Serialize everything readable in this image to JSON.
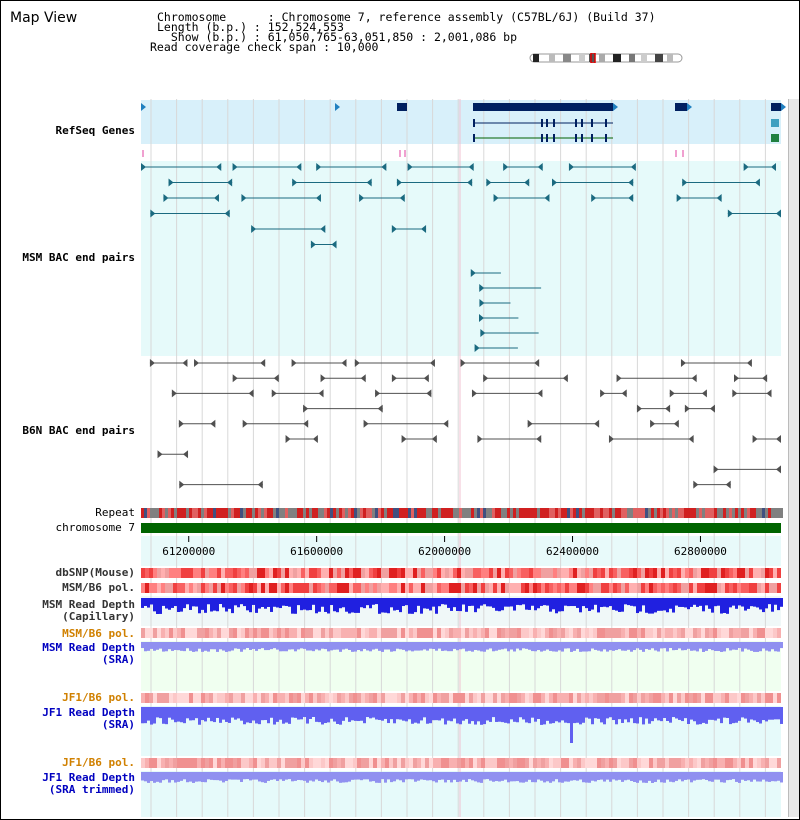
{
  "app": {
    "title": "Map View"
  },
  "header": {
    "lines": [
      "Chromosome      : Chromosome 7, reference assembly (C57BL/6J) (Build 37)",
      "Length (b.p.) : 152,524,553",
      "  Show (b.p.) : 61,050,765-63,051,850 : 2,001,086 bp",
      "Read coverage check span : 10,000"
    ]
  },
  "view": {
    "start": 61050765,
    "end": 63051850
  },
  "axis": {
    "ticks": [
      "61200000",
      "61600000",
      "62000000",
      "62400000",
      "62800000"
    ],
    "tick_values": [
      61200000,
      61600000,
      62000000,
      62400000,
      62800000
    ]
  },
  "tracks": {
    "refseq": {
      "label": "RefSeq Genes",
      "color": "#0000c0"
    },
    "msm_bac": {
      "label": "MSM BAC end pairs",
      "color": "#005f7f"
    },
    "b6n_bac": {
      "label": "B6N BAC end pairs",
      "color": "#404040"
    },
    "repeat": {
      "label": "Repeat"
    },
    "chromosome": {
      "label": "chromosome 7"
    },
    "dbsnp": {
      "label": "dbSNP(Mouse)"
    },
    "msm_b6_pol": {
      "label": "MSM/B6 pol."
    },
    "msm_depth_cap": {
      "label": "MSM Read Depth\n(Capillary)"
    },
    "msm_b6_pol_sra": {
      "label": "MSM/B6 pol.",
      "color": "#d08000"
    },
    "msm_depth_sra": {
      "label": "MSM Read Depth\n(SRA)",
      "color": "#0000c0"
    },
    "jf1_b6_pol": {
      "label": "JF1/B6 pol.",
      "color": "#d08000"
    },
    "jf1_depth_sra": {
      "label": "JF1 Read Depth\n(SRA)",
      "color": "#0000c0"
    },
    "jf1_b6_pol_trim": {
      "label": "JF1/B6 pol.",
      "color": "#d08000"
    },
    "jf1_depth_trim": {
      "label": "JF1 Read Depth\n(SRA trimmed)",
      "color": "#0000c0"
    }
  }
}
